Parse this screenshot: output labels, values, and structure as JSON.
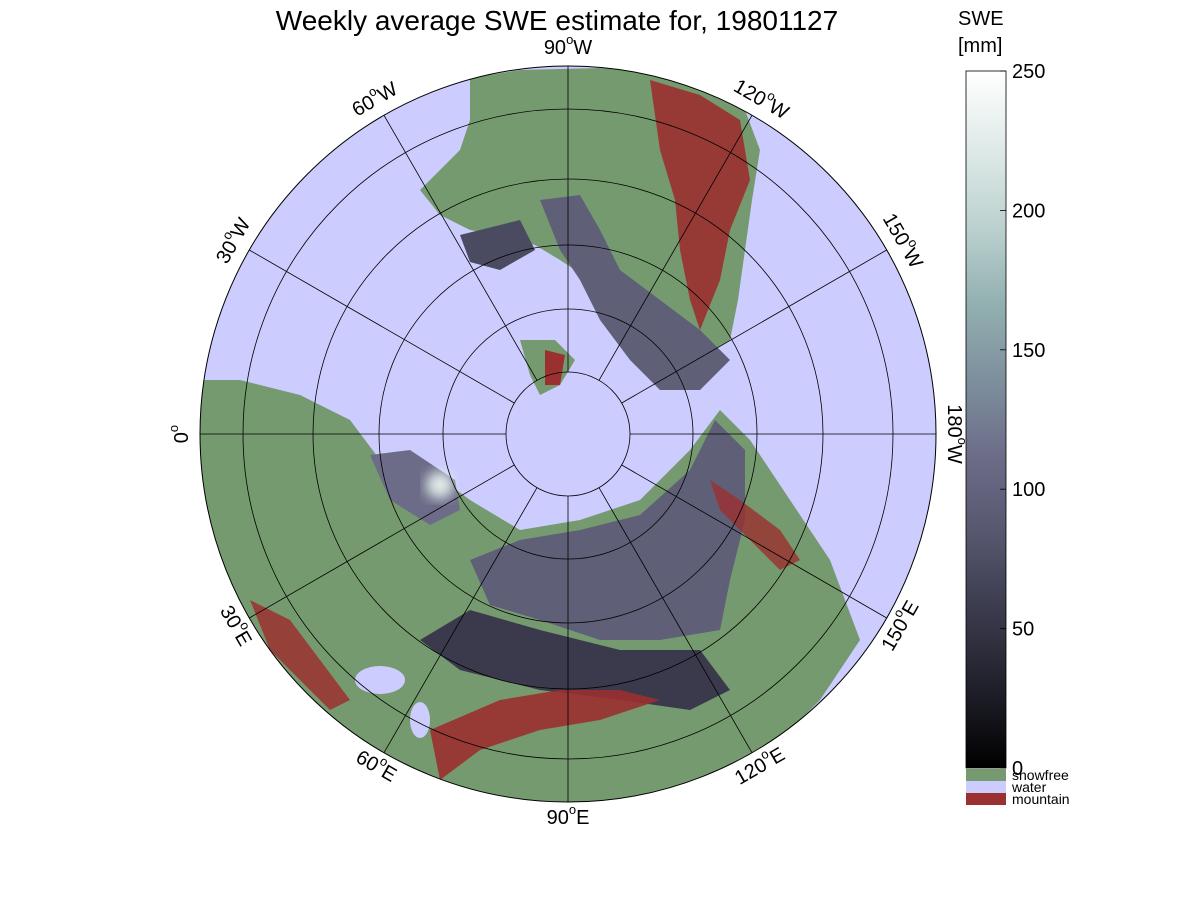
{
  "title": "Weekly average SWE estimate for, 19801127",
  "colors": {
    "water": "#ccccff",
    "snowfree": "#769a6f",
    "mountain": "#9b3030",
    "snow_low": "#3a3a4c",
    "snow_mid": "#5f5f78",
    "background": "#ffffff"
  },
  "map": {
    "projection": "north polar stereographic",
    "longitude_labels": [
      {
        "deg": "90",
        "unit": "W"
      },
      {
        "deg": "120",
        "unit": "W"
      },
      {
        "deg": "150",
        "unit": "W"
      },
      {
        "deg": "180",
        "unit": "W"
      },
      {
        "deg": "150",
        "unit": "E"
      },
      {
        "deg": "120",
        "unit": "E"
      },
      {
        "deg": "90",
        "unit": "E"
      },
      {
        "deg": "60",
        "unit": "E"
      },
      {
        "deg": "30",
        "unit": "E"
      },
      {
        "deg": "0",
        "unit": ""
      },
      {
        "deg": "30",
        "unit": "W"
      },
      {
        "deg": "60",
        "unit": "W"
      }
    ],
    "degree_symbol": "o"
  },
  "colorbar": {
    "title_line1": "SWE",
    "title_line2": "[mm]",
    "min": 0,
    "max": 250,
    "ticks": [
      "0",
      "50",
      "100",
      "150",
      "200",
      "250"
    ],
    "gradient": [
      "#000000",
      "#1f1f2a",
      "#3a3a4c",
      "#56566e",
      "#6c6c88",
      "#7d8f9d",
      "#93b0b0",
      "#bcd2d0",
      "#dfeae8",
      "#ffffff"
    ],
    "categories": [
      {
        "label": "snowfree",
        "color": "#769a6f"
      },
      {
        "label": "water",
        "color": "#ccccff"
      },
      {
        "label": "mountain",
        "color": "#9b3030"
      }
    ]
  }
}
